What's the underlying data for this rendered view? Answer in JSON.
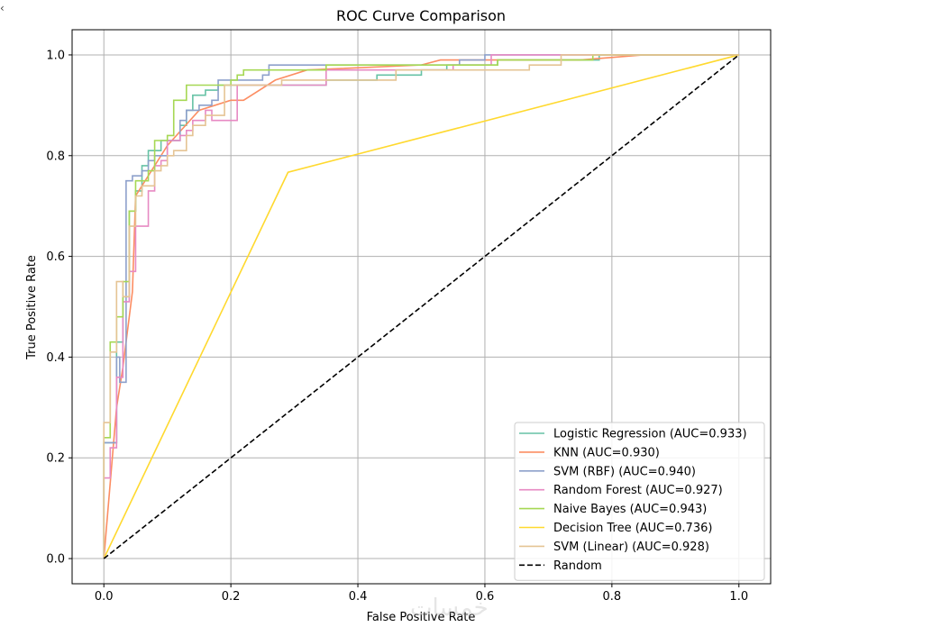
{
  "chart_data": {
    "type": "line",
    "title": "ROC Curve Comparison",
    "xlabel": "False Positive Rate",
    "ylabel": "True Positive Rate",
    "xlim": [
      -0.05,
      1.05
    ],
    "ylim": [
      -0.05,
      1.05
    ],
    "x_ticks": [
      "0.0",
      "0.2",
      "0.4",
      "0.6",
      "0.8",
      "1.0"
    ],
    "y_ticks": [
      "0.0",
      "0.2",
      "0.4",
      "0.6",
      "0.8",
      "1.0"
    ],
    "grid": true,
    "legend_position": "lower-right",
    "series": [
      {
        "name": "Logistic Regression (AUC=0.933)",
        "color": "#66c2a5",
        "points": [
          [
            0,
            0
          ],
          [
            0,
            0.23
          ],
          [
            0.02,
            0.23
          ],
          [
            0.02,
            0.43
          ],
          [
            0.03,
            0.43
          ],
          [
            0.03,
            0.52
          ],
          [
            0.04,
            0.52
          ],
          [
            0.04,
            0.69
          ],
          [
            0.05,
            0.69
          ],
          [
            0.05,
            0.73
          ],
          [
            0.06,
            0.73
          ],
          [
            0.06,
            0.78
          ],
          [
            0.07,
            0.78
          ],
          [
            0.07,
            0.81
          ],
          [
            0.09,
            0.81
          ],
          [
            0.09,
            0.83
          ],
          [
            0.12,
            0.83
          ],
          [
            0.12,
            0.86
          ],
          [
            0.13,
            0.86
          ],
          [
            0.13,
            0.89
          ],
          [
            0.14,
            0.89
          ],
          [
            0.14,
            0.92
          ],
          [
            0.16,
            0.92
          ],
          [
            0.16,
            0.93
          ],
          [
            0.18,
            0.93
          ],
          [
            0.18,
            0.94
          ],
          [
            0.35,
            0.94
          ],
          [
            0.35,
            0.95
          ],
          [
            0.43,
            0.95
          ],
          [
            0.43,
            0.96
          ],
          [
            0.5,
            0.96
          ],
          [
            0.5,
            0.97
          ],
          [
            0.54,
            0.97
          ],
          [
            0.54,
            0.98
          ],
          [
            0.62,
            0.98
          ],
          [
            0.62,
            0.99
          ],
          [
            0.78,
            0.99
          ],
          [
            0.78,
            1.0
          ],
          [
            1.0,
            1.0
          ]
        ]
      },
      {
        "name": "KNN (AUC=0.930)",
        "color": "#fc8d62",
        "points": [
          [
            0,
            0
          ],
          [
            0.02,
            0.3
          ],
          [
            0.03,
            0.38
          ],
          [
            0.045,
            0.53
          ],
          [
            0.05,
            0.72
          ],
          [
            0.08,
            0.78
          ],
          [
            0.1,
            0.82
          ],
          [
            0.15,
            0.89
          ],
          [
            0.2,
            0.91
          ],
          [
            0.22,
            0.91
          ],
          [
            0.27,
            0.95
          ],
          [
            0.32,
            0.97
          ],
          [
            0.5,
            0.98
          ],
          [
            0.53,
            0.99
          ],
          [
            0.75,
            0.99
          ],
          [
            0.85,
            1.0
          ],
          [
            1.0,
            1.0
          ]
        ]
      },
      {
        "name": "SVM (RBF) (AUC=0.940)",
        "color": "#8da0cb",
        "points": [
          [
            0,
            0
          ],
          [
            0,
            0.23
          ],
          [
            0.02,
            0.23
          ],
          [
            0.02,
            0.4
          ],
          [
            0.025,
            0.4
          ],
          [
            0.025,
            0.35
          ],
          [
            0.035,
            0.35
          ],
          [
            0.035,
            0.75
          ],
          [
            0.045,
            0.75
          ],
          [
            0.045,
            0.76
          ],
          [
            0.06,
            0.76
          ],
          [
            0.06,
            0.77
          ],
          [
            0.07,
            0.77
          ],
          [
            0.07,
            0.79
          ],
          [
            0.08,
            0.79
          ],
          [
            0.08,
            0.8
          ],
          [
            0.1,
            0.8
          ],
          [
            0.1,
            0.83
          ],
          [
            0.12,
            0.83
          ],
          [
            0.12,
            0.87
          ],
          [
            0.13,
            0.87
          ],
          [
            0.13,
            0.89
          ],
          [
            0.15,
            0.89
          ],
          [
            0.15,
            0.9
          ],
          [
            0.17,
            0.9
          ],
          [
            0.17,
            0.91
          ],
          [
            0.18,
            0.91
          ],
          [
            0.18,
            0.95
          ],
          [
            0.25,
            0.95
          ],
          [
            0.25,
            0.96
          ],
          [
            0.26,
            0.96
          ],
          [
            0.26,
            0.98
          ],
          [
            0.56,
            0.98
          ],
          [
            0.56,
            0.99
          ],
          [
            0.6,
            0.99
          ],
          [
            0.6,
            1.0
          ],
          [
            1.0,
            1.0
          ]
        ]
      },
      {
        "name": "Random Forest (AUC=0.927)",
        "color": "#e78ac3",
        "points": [
          [
            0,
            0
          ],
          [
            0,
            0.16
          ],
          [
            0.01,
            0.16
          ],
          [
            0.01,
            0.22
          ],
          [
            0.02,
            0.22
          ],
          [
            0.02,
            0.36
          ],
          [
            0.03,
            0.36
          ],
          [
            0.03,
            0.51
          ],
          [
            0.04,
            0.51
          ],
          [
            0.04,
            0.57
          ],
          [
            0.05,
            0.57
          ],
          [
            0.05,
            0.66
          ],
          [
            0.07,
            0.66
          ],
          [
            0.07,
            0.73
          ],
          [
            0.08,
            0.73
          ],
          [
            0.08,
            0.78
          ],
          [
            0.09,
            0.78
          ],
          [
            0.09,
            0.79
          ],
          [
            0.1,
            0.79
          ],
          [
            0.1,
            0.83
          ],
          [
            0.12,
            0.83
          ],
          [
            0.12,
            0.84
          ],
          [
            0.13,
            0.84
          ],
          [
            0.13,
            0.85
          ],
          [
            0.14,
            0.85
          ],
          [
            0.14,
            0.87
          ],
          [
            0.16,
            0.87
          ],
          [
            0.16,
            0.89
          ],
          [
            0.17,
            0.89
          ],
          [
            0.17,
            0.87
          ],
          [
            0.21,
            0.87
          ],
          [
            0.21,
            0.94
          ],
          [
            0.35,
            0.94
          ],
          [
            0.35,
            0.97
          ],
          [
            0.55,
            0.97
          ],
          [
            0.55,
            0.98
          ],
          [
            0.61,
            0.98
          ],
          [
            0.61,
            1.0
          ],
          [
            1.0,
            1.0
          ]
        ]
      },
      {
        "name": "Naive Bayes (AUC=0.943)",
        "color": "#a6d854",
        "points": [
          [
            0,
            0
          ],
          [
            0,
            0.24
          ],
          [
            0.01,
            0.24
          ],
          [
            0.01,
            0.43
          ],
          [
            0.02,
            0.43
          ],
          [
            0.02,
            0.48
          ],
          [
            0.03,
            0.48
          ],
          [
            0.03,
            0.55
          ],
          [
            0.04,
            0.55
          ],
          [
            0.04,
            0.69
          ],
          [
            0.05,
            0.69
          ],
          [
            0.05,
            0.75
          ],
          [
            0.07,
            0.75
          ],
          [
            0.07,
            0.77
          ],
          [
            0.08,
            0.77
          ],
          [
            0.08,
            0.83
          ],
          [
            0.1,
            0.83
          ],
          [
            0.1,
            0.84
          ],
          [
            0.11,
            0.84
          ],
          [
            0.11,
            0.91
          ],
          [
            0.13,
            0.91
          ],
          [
            0.13,
            0.94
          ],
          [
            0.2,
            0.94
          ],
          [
            0.2,
            0.95
          ],
          [
            0.21,
            0.95
          ],
          [
            0.21,
            0.96
          ],
          [
            0.22,
            0.96
          ],
          [
            0.22,
            0.97
          ],
          [
            0.35,
            0.97
          ],
          [
            0.35,
            0.98
          ],
          [
            0.62,
            0.98
          ],
          [
            0.62,
            0.99
          ],
          [
            0.77,
            0.99
          ],
          [
            0.77,
            1.0
          ],
          [
            1.0,
            1.0
          ]
        ]
      },
      {
        "name": "Decision Tree (AUC=0.736)",
        "color": "#ffd92f",
        "points": [
          [
            0,
            0
          ],
          [
            0.29,
            0.767
          ],
          [
            1.0,
            1.0
          ]
        ]
      },
      {
        "name": "SVM (Linear) (AUC=0.928)",
        "color": "#e5c494",
        "points": [
          [
            0,
            0
          ],
          [
            0,
            0.27
          ],
          [
            0.01,
            0.27
          ],
          [
            0.01,
            0.41
          ],
          [
            0.02,
            0.41
          ],
          [
            0.02,
            0.55
          ],
          [
            0.03,
            0.55
          ],
          [
            0.03,
            0.52
          ],
          [
            0.04,
            0.52
          ],
          [
            0.04,
            0.66
          ],
          [
            0.05,
            0.66
          ],
          [
            0.05,
            0.72
          ],
          [
            0.06,
            0.72
          ],
          [
            0.06,
            0.74
          ],
          [
            0.08,
            0.74
          ],
          [
            0.08,
            0.77
          ],
          [
            0.09,
            0.77
          ],
          [
            0.09,
            0.78
          ],
          [
            0.1,
            0.78
          ],
          [
            0.1,
            0.8
          ],
          [
            0.11,
            0.8
          ],
          [
            0.11,
            0.81
          ],
          [
            0.13,
            0.81
          ],
          [
            0.13,
            0.84
          ],
          [
            0.14,
            0.84
          ],
          [
            0.14,
            0.86
          ],
          [
            0.16,
            0.86
          ],
          [
            0.16,
            0.88
          ],
          [
            0.19,
            0.88
          ],
          [
            0.19,
            0.94
          ],
          [
            0.28,
            0.94
          ],
          [
            0.28,
            0.95
          ],
          [
            0.46,
            0.95
          ],
          [
            0.46,
            0.97
          ],
          [
            0.67,
            0.97
          ],
          [
            0.67,
            0.98
          ],
          [
            0.72,
            0.98
          ],
          [
            0.72,
            1.0
          ],
          [
            1.0,
            1.0
          ]
        ]
      },
      {
        "name": "Random",
        "color": "#000000",
        "dashed": true,
        "points": [
          [
            0,
            0
          ],
          [
            1,
            1
          ]
        ]
      }
    ]
  },
  "corner_mark": "‹",
  "watermark_text": "خمسات"
}
